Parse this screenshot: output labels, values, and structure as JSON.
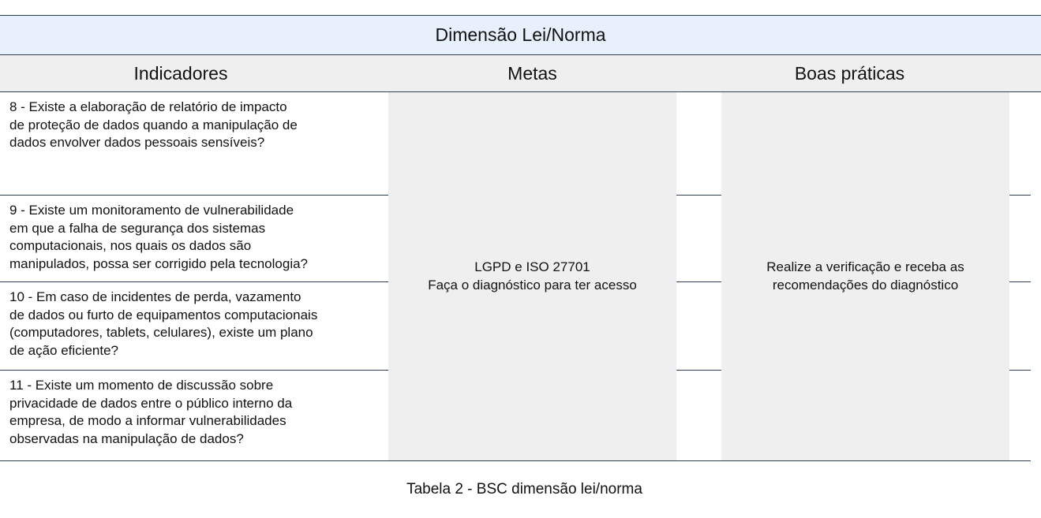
{
  "title": "Dimensão Lei/Norma",
  "headers": {
    "indicadores": "Indicadores",
    "metas": "Metas",
    "boas_praticas": "Boas práticas"
  },
  "indicators": [
    "8 - Existe a elaboração de relatório de impacto\nde proteção de dados quando a manipulação de\ndados envolver dados pessoais sensíveis?",
    "9 - Existe um monitoramento de vulnerabilidade\nem que a falha de segurança dos sistemas\ncomputacionais, nos quais os dados são\nmanipulados, possa ser corrigido pela tecnologia?",
    "10 - Em caso de incidentes de perda, vazamento\nde dados ou furto de equipamentos computacionais\n(computadores, tablets, celulares), existe um plano\nde ação eficiente?",
    "11 - Existe um momento de discussão sobre\nprivacidade de dados entre o público interno da\nempresa, de modo a informar vulnerabilidades\nobservadas na manipulação de dados?"
  ],
  "metas": "LGPD e ISO 27701\nFaça o diagnóstico para ter acesso",
  "boas_praticas": "Realize a verificação e receba as\nrecomendações do diagnóstico",
  "caption": "Tabela 2 - BSC dimensão lei/norma"
}
